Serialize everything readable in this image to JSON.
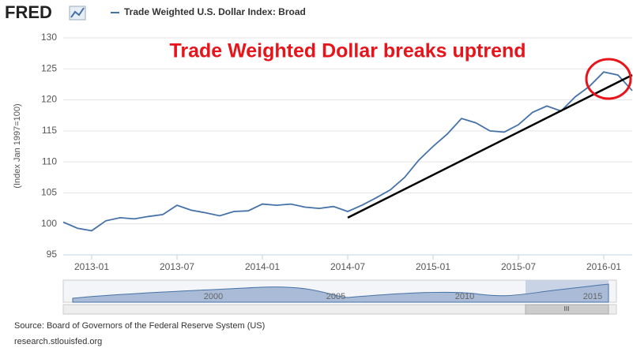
{
  "logo": "FRED",
  "chart_data": {
    "type": "line",
    "title": "Trade Weighted Dollar breaks uptrend",
    "y_label": "(Index Jan 1997=100)",
    "x": [
      "2012-11",
      "2012-12",
      "2013-01",
      "2013-02",
      "2013-03",
      "2013-04",
      "2013-05",
      "2013-06",
      "2013-07",
      "2013-08",
      "2013-09",
      "2013-10",
      "2013-11",
      "2013-12",
      "2014-01",
      "2014-02",
      "2014-03",
      "2014-04",
      "2014-05",
      "2014-06",
      "2014-07",
      "2014-08",
      "2014-09",
      "2014-10",
      "2014-11",
      "2014-12",
      "2015-01",
      "2015-02",
      "2015-03",
      "2015-04",
      "2015-05",
      "2015-06",
      "2015-07",
      "2015-08",
      "2015-09",
      "2015-10",
      "2015-11",
      "2015-12",
      "2016-01",
      "2016-02",
      "2016-03"
    ],
    "series": [
      {
        "name": "Trade Weighted U.S. Dollar Index: Broad",
        "color": "#4572a7",
        "values": [
          100.3,
          99.3,
          98.9,
          100.5,
          101.0,
          100.8,
          101.2,
          101.5,
          103.0,
          102.2,
          101.8,
          101.3,
          102.0,
          102.1,
          103.2,
          103.0,
          103.2,
          102.7,
          102.5,
          102.8,
          102.0,
          103.0,
          104.2,
          105.5,
          107.5,
          110.3,
          112.5,
          114.5,
          117.0,
          116.3,
          115.0,
          114.8,
          116.0,
          118.0,
          119.0,
          118.2,
          120.5,
          122.2,
          124.5,
          124.0,
          121.5
        ]
      }
    ],
    "trendline": {
      "x": [
        "2014-07",
        "2016-03"
      ],
      "values": [
        101,
        124
      ],
      "color": "#000000"
    },
    "xlim": [
      "2012-11",
      "2016-03"
    ],
    "xticks": [
      "2013-01",
      "2013-07",
      "2014-01",
      "2014-07",
      "2015-01",
      "2015-07",
      "2016-01"
    ],
    "ylim": [
      95,
      130
    ],
    "yticks": [
      95,
      100,
      105,
      110,
      115,
      120,
      125,
      130
    ],
    "grid": true
  },
  "navigator": {
    "labels": [
      "2000",
      "2005",
      "2010",
      "2015"
    ],
    "scrollbar": "III"
  },
  "source": "Source: Board of Governors of the Federal Reserve System (US)",
  "url": "research.stlouisfed.org"
}
